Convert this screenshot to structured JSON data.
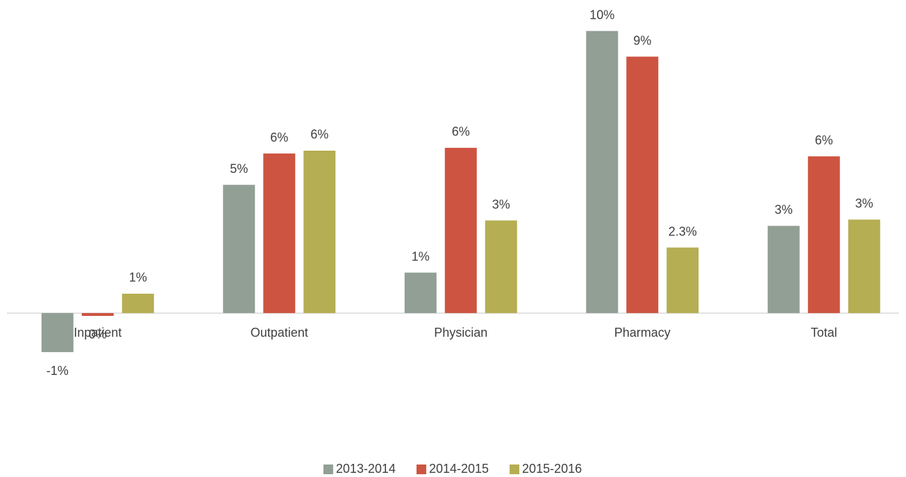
{
  "chart_data": {
    "type": "bar",
    "categories": [
      "Inpatient",
      "Outpatient",
      "Physician",
      "Pharmacy",
      "Total"
    ],
    "series": [
      {
        "name": "2013-2014",
        "color": "#919f94",
        "values": [
          -1.37,
          4.5,
          1.42,
          9.9,
          3.06
        ],
        "value_labels": [
          "-1%",
          "5%",
          "1%",
          "10%",
          "3%"
        ]
      },
      {
        "name": "2014-2015",
        "color": "#cd5440",
        "values": [
          -0.1,
          5.6,
          5.8,
          9.0,
          5.5
        ],
        "value_labels": [
          "0%",
          "6%",
          "6%",
          "9%",
          "6%"
        ]
      },
      {
        "name": "2015-2016",
        "color": "#b5ae52",
        "values": [
          0.68,
          5.7,
          3.25,
          2.3,
          3.28
        ],
        "value_labels": [
          "1%",
          "6%",
          "3%",
          "2.3%",
          "3%"
        ]
      }
    ],
    "ylim": [
      -3,
      10.5
    ],
    "legend": "bottom"
  }
}
